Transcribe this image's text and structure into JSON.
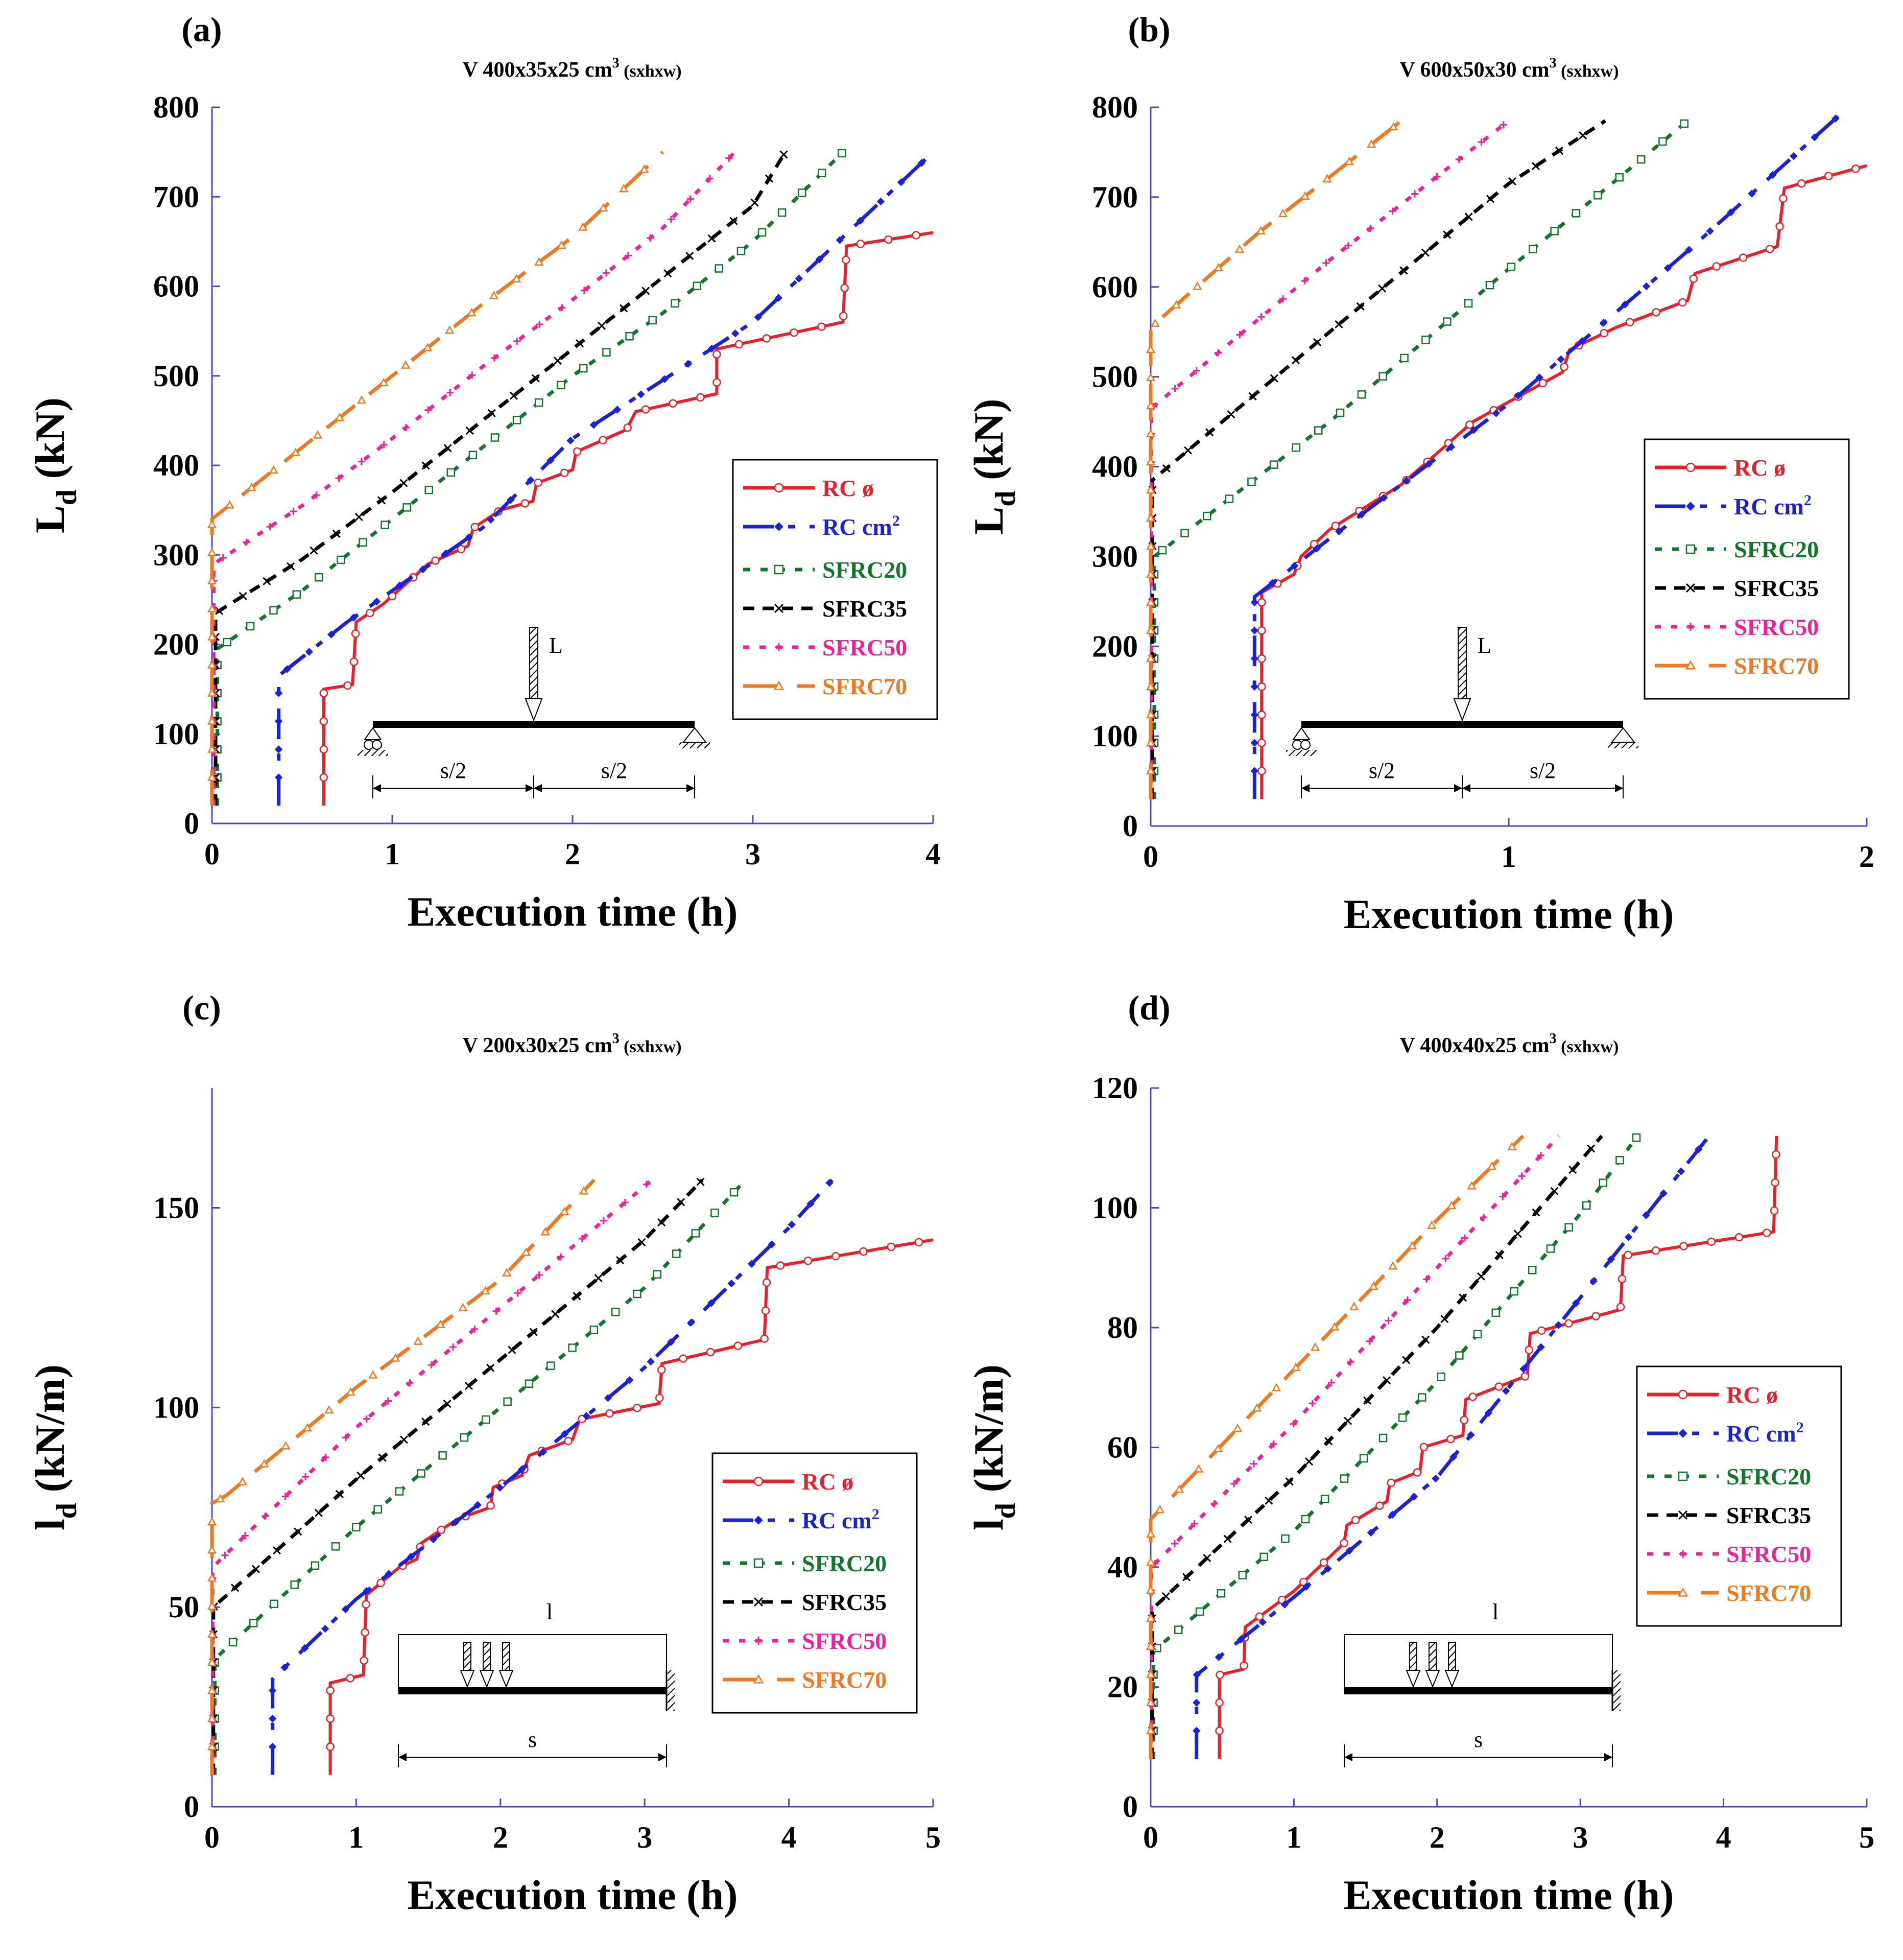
{
  "chart_data": [
    {
      "panel": "(a)",
      "type": "line",
      "title": "V 400x35x25 cm",
      "title_sup": "3",
      "title_suffix": " (sxhxw)",
      "xlabel": "Execution time (h)",
      "ylabel_main": "L",
      "ylabel_sub": "d",
      "ylabel_unit": " (kN)",
      "xlim": [
        0,
        4
      ],
      "ylim": [
        0,
        800
      ],
      "xticks": [
        0,
        1,
        2,
        3,
        4
      ],
      "yticks": [
        0,
        100,
        200,
        300,
        400,
        500,
        600,
        700,
        800
      ],
      "legend_position": "lower-right",
      "schematic": {
        "type": "point_load",
        "load_label": "L",
        "dim_left": "s/2",
        "dim_right": "s/2"
      },
      "series": [
        {
          "name": "RC ø",
          "points": [
            [
              0.62,
              20
            ],
            [
              0.62,
              150
            ],
            [
              0.78,
              155
            ],
            [
              0.8,
              225
            ],
            [
              0.95,
              245
            ],
            [
              1.2,
              290
            ],
            [
              1.42,
              310
            ],
            [
              1.45,
              330
            ],
            [
              1.6,
              350
            ],
            [
              1.78,
              360
            ],
            [
              1.8,
              380
            ],
            [
              2.0,
              395
            ],
            [
              2.02,
              415
            ],
            [
              2.3,
              440
            ],
            [
              2.35,
              460
            ],
            [
              2.8,
              480
            ],
            [
              2.8,
              530
            ],
            [
              3.5,
              560
            ],
            [
              3.52,
              645
            ],
            [
              4.0,
              660
            ]
          ]
        },
        {
          "name": "RC cm2",
          "points": [
            [
              0.37,
              20
            ],
            [
              0.37,
              165
            ],
            [
              0.75,
              225
            ],
            [
              1.5,
              330
            ],
            [
              2.0,
              430
            ],
            [
              3.0,
              560
            ],
            [
              4.0,
              750
            ]
          ]
        },
        {
          "name": "SFRC20",
          "points": [
            [
              0.03,
              20
            ],
            [
              0.03,
              195
            ],
            [
              0.5,
              260
            ],
            [
              1.0,
              340
            ],
            [
              1.5,
              420
            ],
            [
              2.0,
              500
            ],
            [
              2.5,
              570
            ],
            [
              3.0,
              650
            ],
            [
              3.5,
              750
            ]
          ]
        },
        {
          "name": "SFRC35",
          "points": [
            [
              0.02,
              20
            ],
            [
              0.02,
              235
            ],
            [
              0.5,
              295
            ],
            [
              1.0,
              370
            ],
            [
              1.5,
              450
            ],
            [
              2.0,
              530
            ],
            [
              2.5,
              610
            ],
            [
              3.0,
              690
            ],
            [
              3.18,
              750
            ]
          ]
        },
        {
          "name": "SFRC50",
          "points": [
            [
              0.01,
              20
            ],
            [
              0.01,
              290
            ],
            [
              0.5,
              355
            ],
            [
              1.0,
              430
            ],
            [
              1.5,
              510
            ],
            [
              2.0,
              585
            ],
            [
              2.5,
              665
            ],
            [
              2.9,
              750
            ]
          ]
        },
        {
          "name": "SFRC70",
          "points": [
            [
              0.0,
              20
            ],
            [
              0.0,
              340
            ],
            [
              0.5,
              420
            ],
            [
              1.0,
              500
            ],
            [
              1.5,
              580
            ],
            [
              2.0,
              655
            ],
            [
              2.5,
              750
            ]
          ]
        }
      ]
    },
    {
      "panel": "(b)",
      "type": "line",
      "title": "V 600x50x30 cm",
      "title_sup": "3",
      "title_suffix": " (sxhxw)",
      "xlabel": "Execution time (h)",
      "ylabel_main": "L",
      "ylabel_sub": "d",
      "ylabel_unit": " (kN)",
      "xlim": [
        0,
        2
      ],
      "ylim": [
        0,
        800
      ],
      "xticks": [
        0,
        1,
        2
      ],
      "yticks": [
        0,
        100,
        200,
        300,
        400,
        500,
        600,
        700,
        800
      ],
      "legend_position": "right",
      "schematic": {
        "type": "point_load",
        "load_label": "L",
        "dim_left": "s/2",
        "dim_right": "s/2"
      },
      "series": [
        {
          "name": "RC ø",
          "points": [
            [
              0.31,
              30
            ],
            [
              0.31,
              260
            ],
            [
              0.4,
              280
            ],
            [
              0.42,
              300
            ],
            [
              0.5,
              330
            ],
            [
              0.7,
              380
            ],
            [
              0.9,
              450
            ],
            [
              1.15,
              505
            ],
            [
              1.17,
              530
            ],
            [
              1.3,
              555
            ],
            [
              1.5,
              585
            ],
            [
              1.52,
              615
            ],
            [
              1.75,
              645
            ],
            [
              1.77,
              710
            ],
            [
              2.0,
              735
            ]
          ]
        },
        {
          "name": "RC cm2",
          "points": [
            [
              0.29,
              30
            ],
            [
              0.29,
              255
            ],
            [
              0.5,
              320
            ],
            [
              1.0,
              470
            ],
            [
              1.5,
              640
            ],
            [
              1.92,
              790
            ]
          ]
        },
        {
          "name": "SFRC20",
          "points": [
            [
              0.01,
              30
            ],
            [
              0.01,
              300
            ],
            [
              0.5,
              450
            ],
            [
              1.0,
              620
            ],
            [
              1.5,
              785
            ]
          ]
        },
        {
          "name": "SFRC35",
          "points": [
            [
              0.005,
              30
            ],
            [
              0.005,
              385
            ],
            [
              0.5,
              550
            ],
            [
              1.0,
              715
            ],
            [
              1.27,
              785
            ]
          ]
        },
        {
          "name": "SFRC50",
          "points": [
            [
              0.002,
              30
            ],
            [
              0.002,
              465
            ],
            [
              0.5,
              630
            ],
            [
              1.0,
              785
            ]
          ]
        },
        {
          "name": "SFRC70",
          "points": [
            [
              0.0,
              30
            ],
            [
              0.0,
              555
            ],
            [
              0.3,
              660
            ],
            [
              0.7,
              785
            ]
          ]
        }
      ]
    },
    {
      "panel": "(c)",
      "type": "line",
      "title": "V 200x30x25 cm",
      "title_sup": "3",
      "title_suffix": " (sxhxw)",
      "xlabel": "Execution time (h)",
      "ylabel_main": "l",
      "ylabel_sub": "d",
      "ylabel_unit": " (kN/m)",
      "xlim": [
        0,
        5
      ],
      "ylim": [
        0,
        180
      ],
      "xticks": [
        0,
        1,
        2,
        3,
        4,
        5
      ],
      "yticks": [
        0,
        50,
        100,
        150
      ],
      "legend_position": "lower-right",
      "schematic": {
        "type": "distributed_load",
        "load_label": "l",
        "dim_label": "s"
      },
      "series": [
        {
          "name": "RC ø",
          "points": [
            [
              0.82,
              8
            ],
            [
              0.82,
              31
            ],
            [
              1.05,
              33
            ],
            [
              1.07,
              53
            ],
            [
              1.3,
              60
            ],
            [
              1.42,
              62
            ],
            [
              1.45,
              66
            ],
            [
              1.7,
              72
            ],
            [
              1.93,
              75
            ],
            [
              1.95,
              80
            ],
            [
              2.15,
              83
            ],
            [
              2.2,
              88
            ],
            [
              2.5,
              92
            ],
            [
              2.55,
              97
            ],
            [
              3.1,
              101
            ],
            [
              3.12,
              111
            ],
            [
              3.83,
              117
            ],
            [
              3.85,
              135
            ],
            [
              5.0,
              142
            ]
          ]
        },
        {
          "name": "RC cm2",
          "points": [
            [
              0.42,
              8
            ],
            [
              0.42,
              32
            ],
            [
              1.0,
              52
            ],
            [
              2.0,
              80
            ],
            [
              3.0,
              110
            ],
            [
              4.0,
              145
            ],
            [
              4.3,
              157
            ]
          ]
        },
        {
          "name": "SFRC20",
          "points": [
            [
              0.02,
              8
            ],
            [
              0.02,
              37
            ],
            [
              1.0,
              70
            ],
            [
              2.0,
              100
            ],
            [
              3.0,
              130
            ],
            [
              3.7,
              157
            ]
          ]
        },
        {
          "name": "SFRC35",
          "points": [
            [
              0.01,
              8
            ],
            [
              0.01,
              50
            ],
            [
              1.0,
              82
            ],
            [
              2.0,
              112
            ],
            [
              3.0,
              142
            ],
            [
              3.4,
              157
            ]
          ]
        },
        {
          "name": "SFRC50",
          "points": [
            [
              0.005,
              8
            ],
            [
              0.005,
              60
            ],
            [
              1.0,
              95
            ],
            [
              2.0,
              125
            ],
            [
              3.05,
              157
            ]
          ]
        },
        {
          "name": "SFRC70",
          "points": [
            [
              0.0,
              8
            ],
            [
              0.0,
              76
            ],
            [
              0.1,
              78
            ],
            [
              1.0,
              105
            ],
            [
              2.0,
              132
            ],
            [
              2.65,
              157
            ]
          ]
        }
      ]
    },
    {
      "panel": "(d)",
      "type": "line",
      "title": "V 400x40x25 cm",
      "title_sup": "3",
      "title_suffix": " (sxhxw)",
      "xlabel": "Execution time (h)",
      "ylabel_main": "l",
      "ylabel_sub": "d",
      "ylabel_unit": " (kN/m)",
      "xlim": [
        0,
        5
      ],
      "ylim": [
        0,
        120
      ],
      "xticks": [
        0,
        1,
        2,
        3,
        4,
        5
      ],
      "yticks": [
        0,
        20,
        40,
        60,
        80,
        100,
        120
      ],
      "legend_position": "right",
      "schematic": {
        "type": "distributed_load",
        "load_label": "l",
        "dim_label": "s"
      },
      "series": [
        {
          "name": "RC ø",
          "points": [
            [
              0.48,
              8
            ],
            [
              0.48,
              22
            ],
            [
              0.65,
              23
            ],
            [
              0.66,
              30
            ],
            [
              1.0,
              36
            ],
            [
              1.35,
              44
            ],
            [
              1.37,
              47
            ],
            [
              1.65,
              51
            ],
            [
              1.67,
              54
            ],
            [
              1.88,
              56
            ],
            [
              1.9,
              60
            ],
            [
              2.18,
              62
            ],
            [
              2.2,
              68
            ],
            [
              2.63,
              72
            ],
            [
              2.65,
              79
            ],
            [
              3.28,
              83
            ],
            [
              3.3,
              92
            ],
            [
              4.35,
              96
            ],
            [
              4.37,
              112
            ]
          ]
        },
        {
          "name": "RC cm2",
          "points": [
            [
              0.32,
              8
            ],
            [
              0.32,
              22
            ],
            [
              1.0,
              35
            ],
            [
              2.0,
              55
            ],
            [
              3.0,
              85
            ],
            [
              3.9,
              112
            ]
          ]
        },
        {
          "name": "SFRC20",
          "points": [
            [
              0.02,
              8
            ],
            [
              0.02,
              26
            ],
            [
              1.0,
              46
            ],
            [
              2.0,
              71
            ],
            [
              3.0,
              99
            ],
            [
              3.4,
              112
            ]
          ]
        },
        {
          "name": "SFRC35",
          "points": [
            [
              0.01,
              8
            ],
            [
              0.01,
              33
            ],
            [
              1.0,
              55
            ],
            [
              2.0,
              80
            ],
            [
              3.15,
              112
            ]
          ]
        },
        {
          "name": "SFRC50",
          "points": [
            [
              0.005,
              8
            ],
            [
              0.005,
              40
            ],
            [
              1.0,
              64
            ],
            [
              2.0,
              90
            ],
            [
              2.85,
              112
            ]
          ]
        },
        {
          "name": "SFRC70",
          "points": [
            [
              0.0,
              8
            ],
            [
              0.0,
              48
            ],
            [
              1.0,
              73
            ],
            [
              2.0,
              98
            ],
            [
              2.6,
              112
            ]
          ]
        }
      ]
    }
  ],
  "series_styles": [
    {
      "name": "RC ø",
      "label": "RC ø",
      "sup": "",
      "color": "#e8202a",
      "dash": "",
      "marker": "circle"
    },
    {
      "name": "RC cm2",
      "label": "RC cm",
      "sup": "2",
      "color": "#1a22d6",
      "dash": "60 28 14 28",
      "marker": "diamond"
    },
    {
      "name": "SFRC20",
      "label": "SFRC20",
      "sup": "",
      "color": "#12762a",
      "dash": "14 20",
      "marker": "square"
    },
    {
      "name": "SFRC35",
      "label": "SFRC35",
      "sup": "",
      "color": "#000000",
      "dash": "22 16",
      "marker": "x"
    },
    {
      "name": "SFRC50",
      "label": "SFRC50",
      "sup": "",
      "color": "#f0209a",
      "dash": "12 20",
      "marker": "plus"
    },
    {
      "name": "SFRC70",
      "label": "SFRC70",
      "sup": "",
      "color": "#f07820",
      "dash": "70 36",
      "marker": "triangle"
    }
  ],
  "axis_color": "#4a48c8"
}
